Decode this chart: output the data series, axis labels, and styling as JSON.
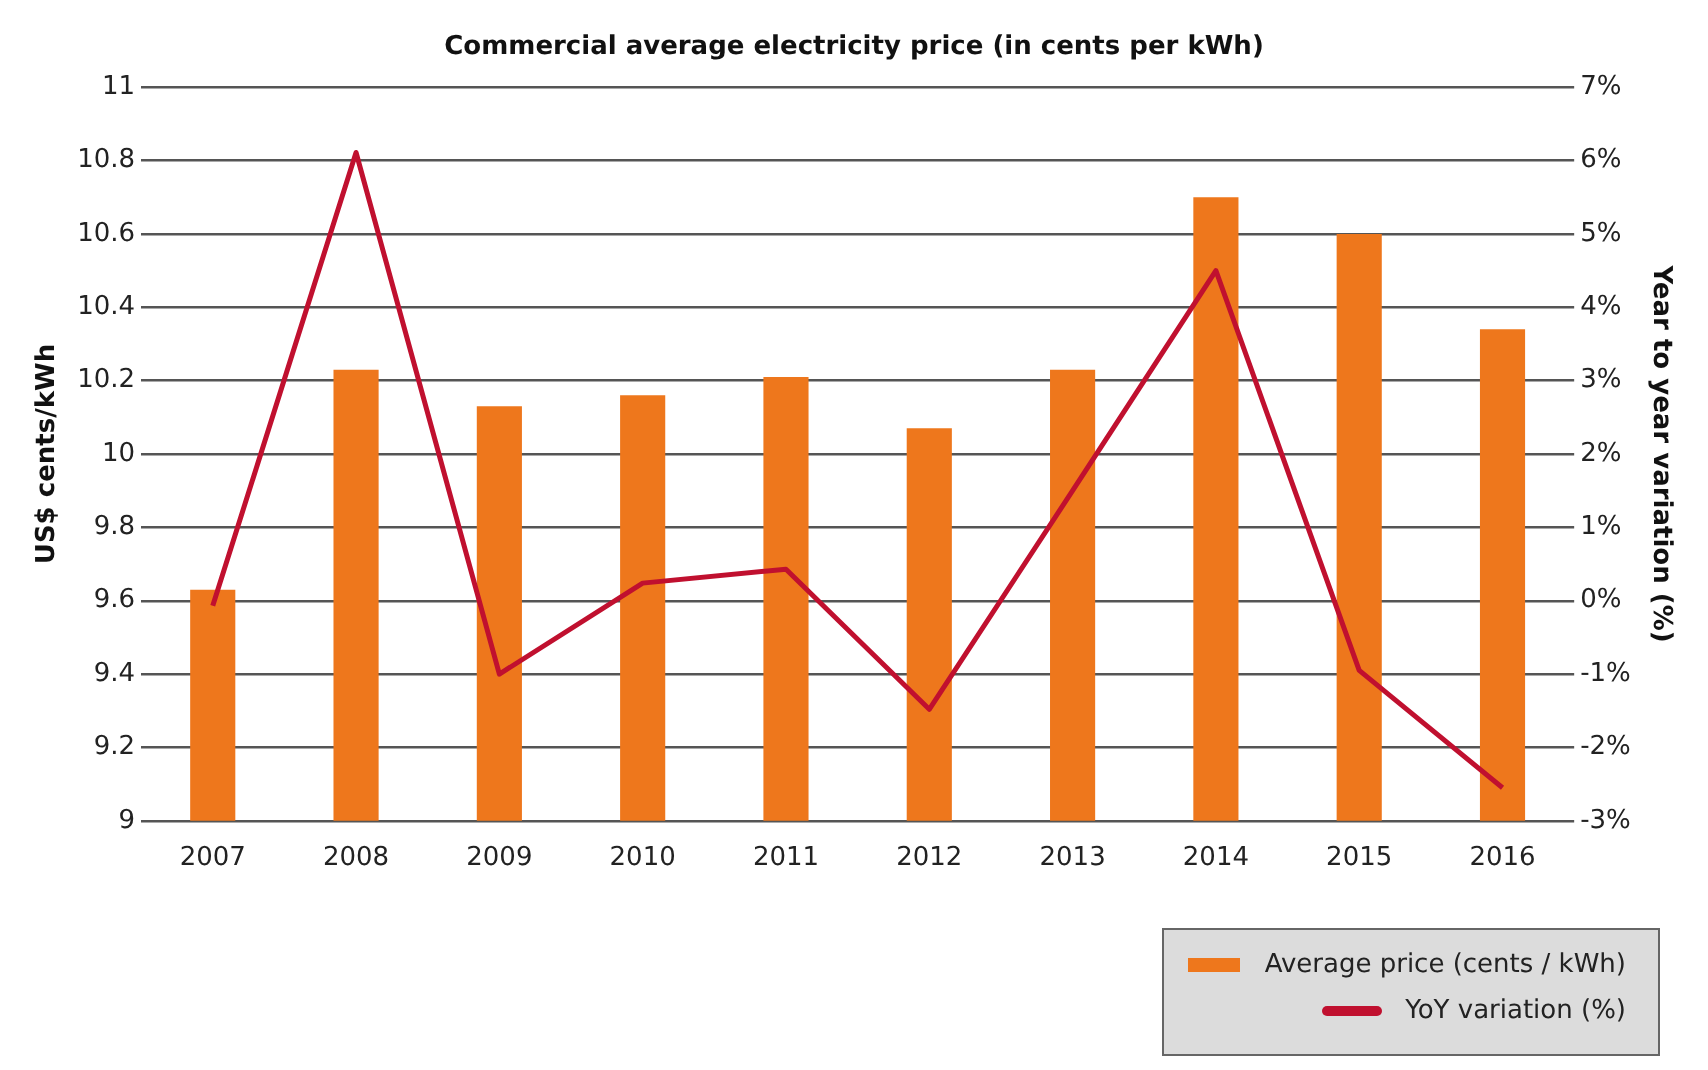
{
  "chart_data": {
    "type": "bar",
    "title": "Commercial average electricity price (in cents per kWh)",
    "ylabel": "US$ cents/kWh",
    "y2label": "Year to year variation (%)",
    "categories": [
      "2007",
      "2008",
      "2009",
      "2010",
      "2011",
      "2012",
      "2013",
      "2014",
      "2015",
      "2016"
    ],
    "series": [
      {
        "name": "Average price (cents / kWh)",
        "color": "#ee771c",
        "values": [
          9.63,
          10.23,
          10.13,
          10.16,
          10.21,
          10.07,
          10.23,
          10.7,
          10.6,
          10.34
        ]
      },
      {
        "name": "YoY variation (%)",
        "type": "line",
        "axis": "y2",
        "color": "#c0102f",
        "marker": "none",
        "values": [
          -0.07,
          6.11,
          -1.0,
          0.24,
          0.43,
          -1.48,
          1.5,
          4.5,
          -0.95,
          -2.55
        ]
      }
    ],
    "ylim": [
      9,
      11
    ],
    "yticks": [
      9,
      9.2,
      9.4,
      9.6,
      9.8,
      10,
      10.2,
      10.4,
      10.6,
      10.8,
      11
    ],
    "y2lim": [
      -3,
      7
    ],
    "y2ticks": [
      {
        "value": -3,
        "label": "-3%"
      },
      {
        "value": -2,
        "label": "-2%"
      },
      {
        "value": -1,
        "label": "-1%"
      },
      {
        "value": 0,
        "label": "0%"
      },
      {
        "value": 1,
        "label": "1%"
      },
      {
        "value": 2,
        "label": "2%"
      },
      {
        "value": 3,
        "label": "3%"
      },
      {
        "value": 4,
        "label": "4%"
      },
      {
        "value": 5,
        "label": "5%"
      },
      {
        "value": 6,
        "label": "6%"
      },
      {
        "value": 7,
        "label": "7%"
      }
    ],
    "grid": "y",
    "legend": "bottom right"
  }
}
